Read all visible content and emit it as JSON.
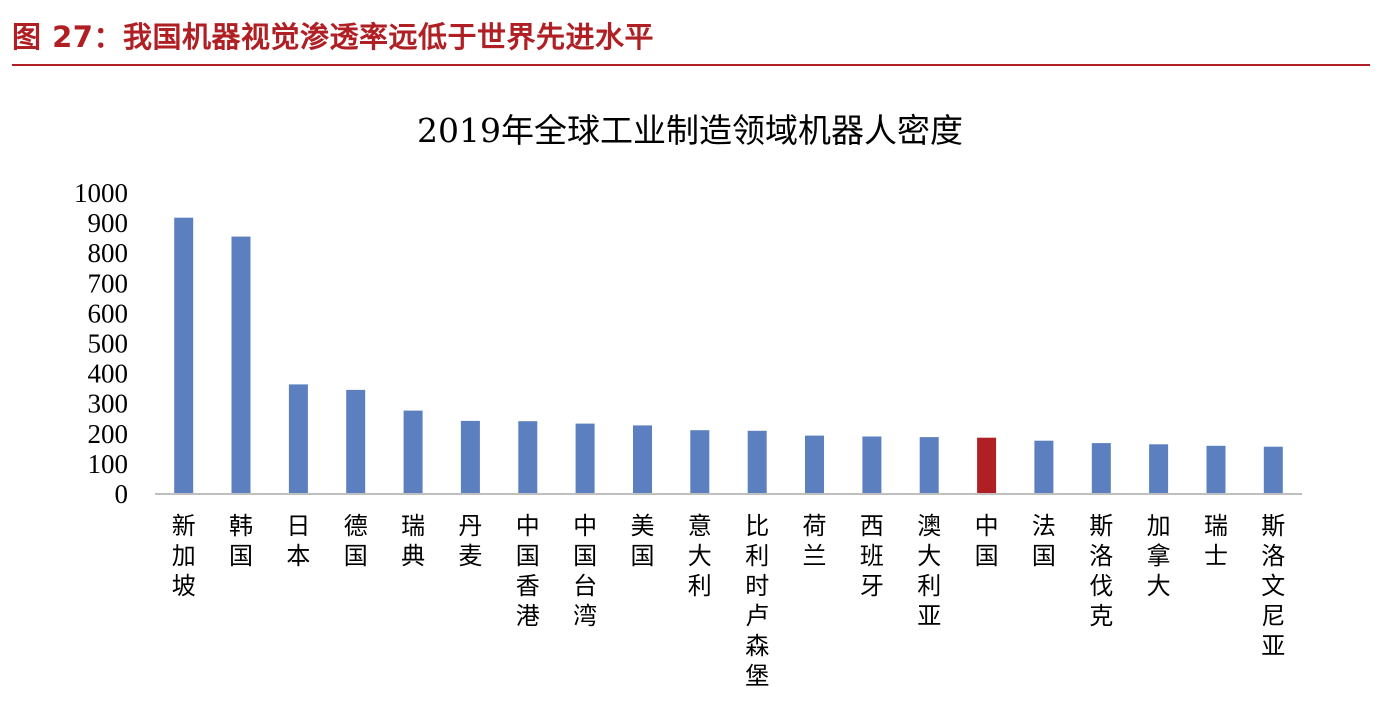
{
  "figure": {
    "caption": "图 27：我国机器视觉渗透率远低于世界先进水平"
  },
  "colors": {
    "caption": "#b01f24",
    "bar_default": "#5b7fbf",
    "bar_highlight": "#b01f24",
    "axis": "#bfbfbf"
  },
  "chart_data": {
    "type": "bar",
    "title": "2019年全球工业制造领域机器人密度",
    "xlabel": "",
    "ylabel": "",
    "ylim": [
      0,
      1000
    ],
    "y_ticks": [
      0,
      100,
      200,
      300,
      400,
      500,
      600,
      700,
      800,
      900,
      1000
    ],
    "grid": false,
    "legend": "none",
    "categories": [
      "新加坡",
      "韩国",
      "日本",
      "德国",
      "瑞典",
      "丹麦",
      "中国香港",
      "中国台湾",
      "美国",
      "意大利",
      "比利时卢森堡",
      "荷兰",
      "西班牙",
      "澳大利亚",
      "中国",
      "法国",
      "斯洛伐克",
      "加拿大",
      "瑞士",
      "斯洛文尼亚"
    ],
    "values": [
      918,
      855,
      364,
      346,
      277,
      243,
      242,
      234,
      228,
      212,
      210,
      194,
      191,
      189,
      187,
      177,
      169,
      165,
      160,
      157
    ],
    "highlight_category": "中国"
  }
}
